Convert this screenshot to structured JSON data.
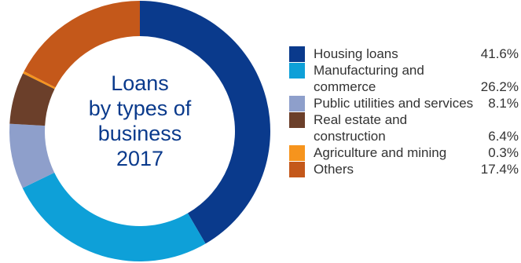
{
  "chart_data": {
    "type": "pie",
    "title_lines": [
      "Loans",
      "by types of",
      "business",
      "2017"
    ],
    "slices": [
      {
        "label": "Housing loans",
        "value": 41.6,
        "value_label": "41.6%",
        "color": "#0a3a8c"
      },
      {
        "label": "Manufacturing and commerce",
        "value": 26.2,
        "value_label": "26.2%",
        "color": "#0ea0d8"
      },
      {
        "label": "Public utilities and services",
        "value": 8.1,
        "value_label": "8.1%",
        "color": "#8e9fcb"
      },
      {
        "label": "Real estate and construction",
        "value": 6.4,
        "value_label": "6.4%",
        "color": "#6b3f2a"
      },
      {
        "label": "Agriculture and mining",
        "value": 0.3,
        "value_label": "0.3%",
        "color": "#f6941d"
      },
      {
        "label": "Others",
        "value": 17.4,
        "value_label": "17.4%",
        "color": "#c4581a"
      }
    ],
    "legend_position": "right"
  }
}
